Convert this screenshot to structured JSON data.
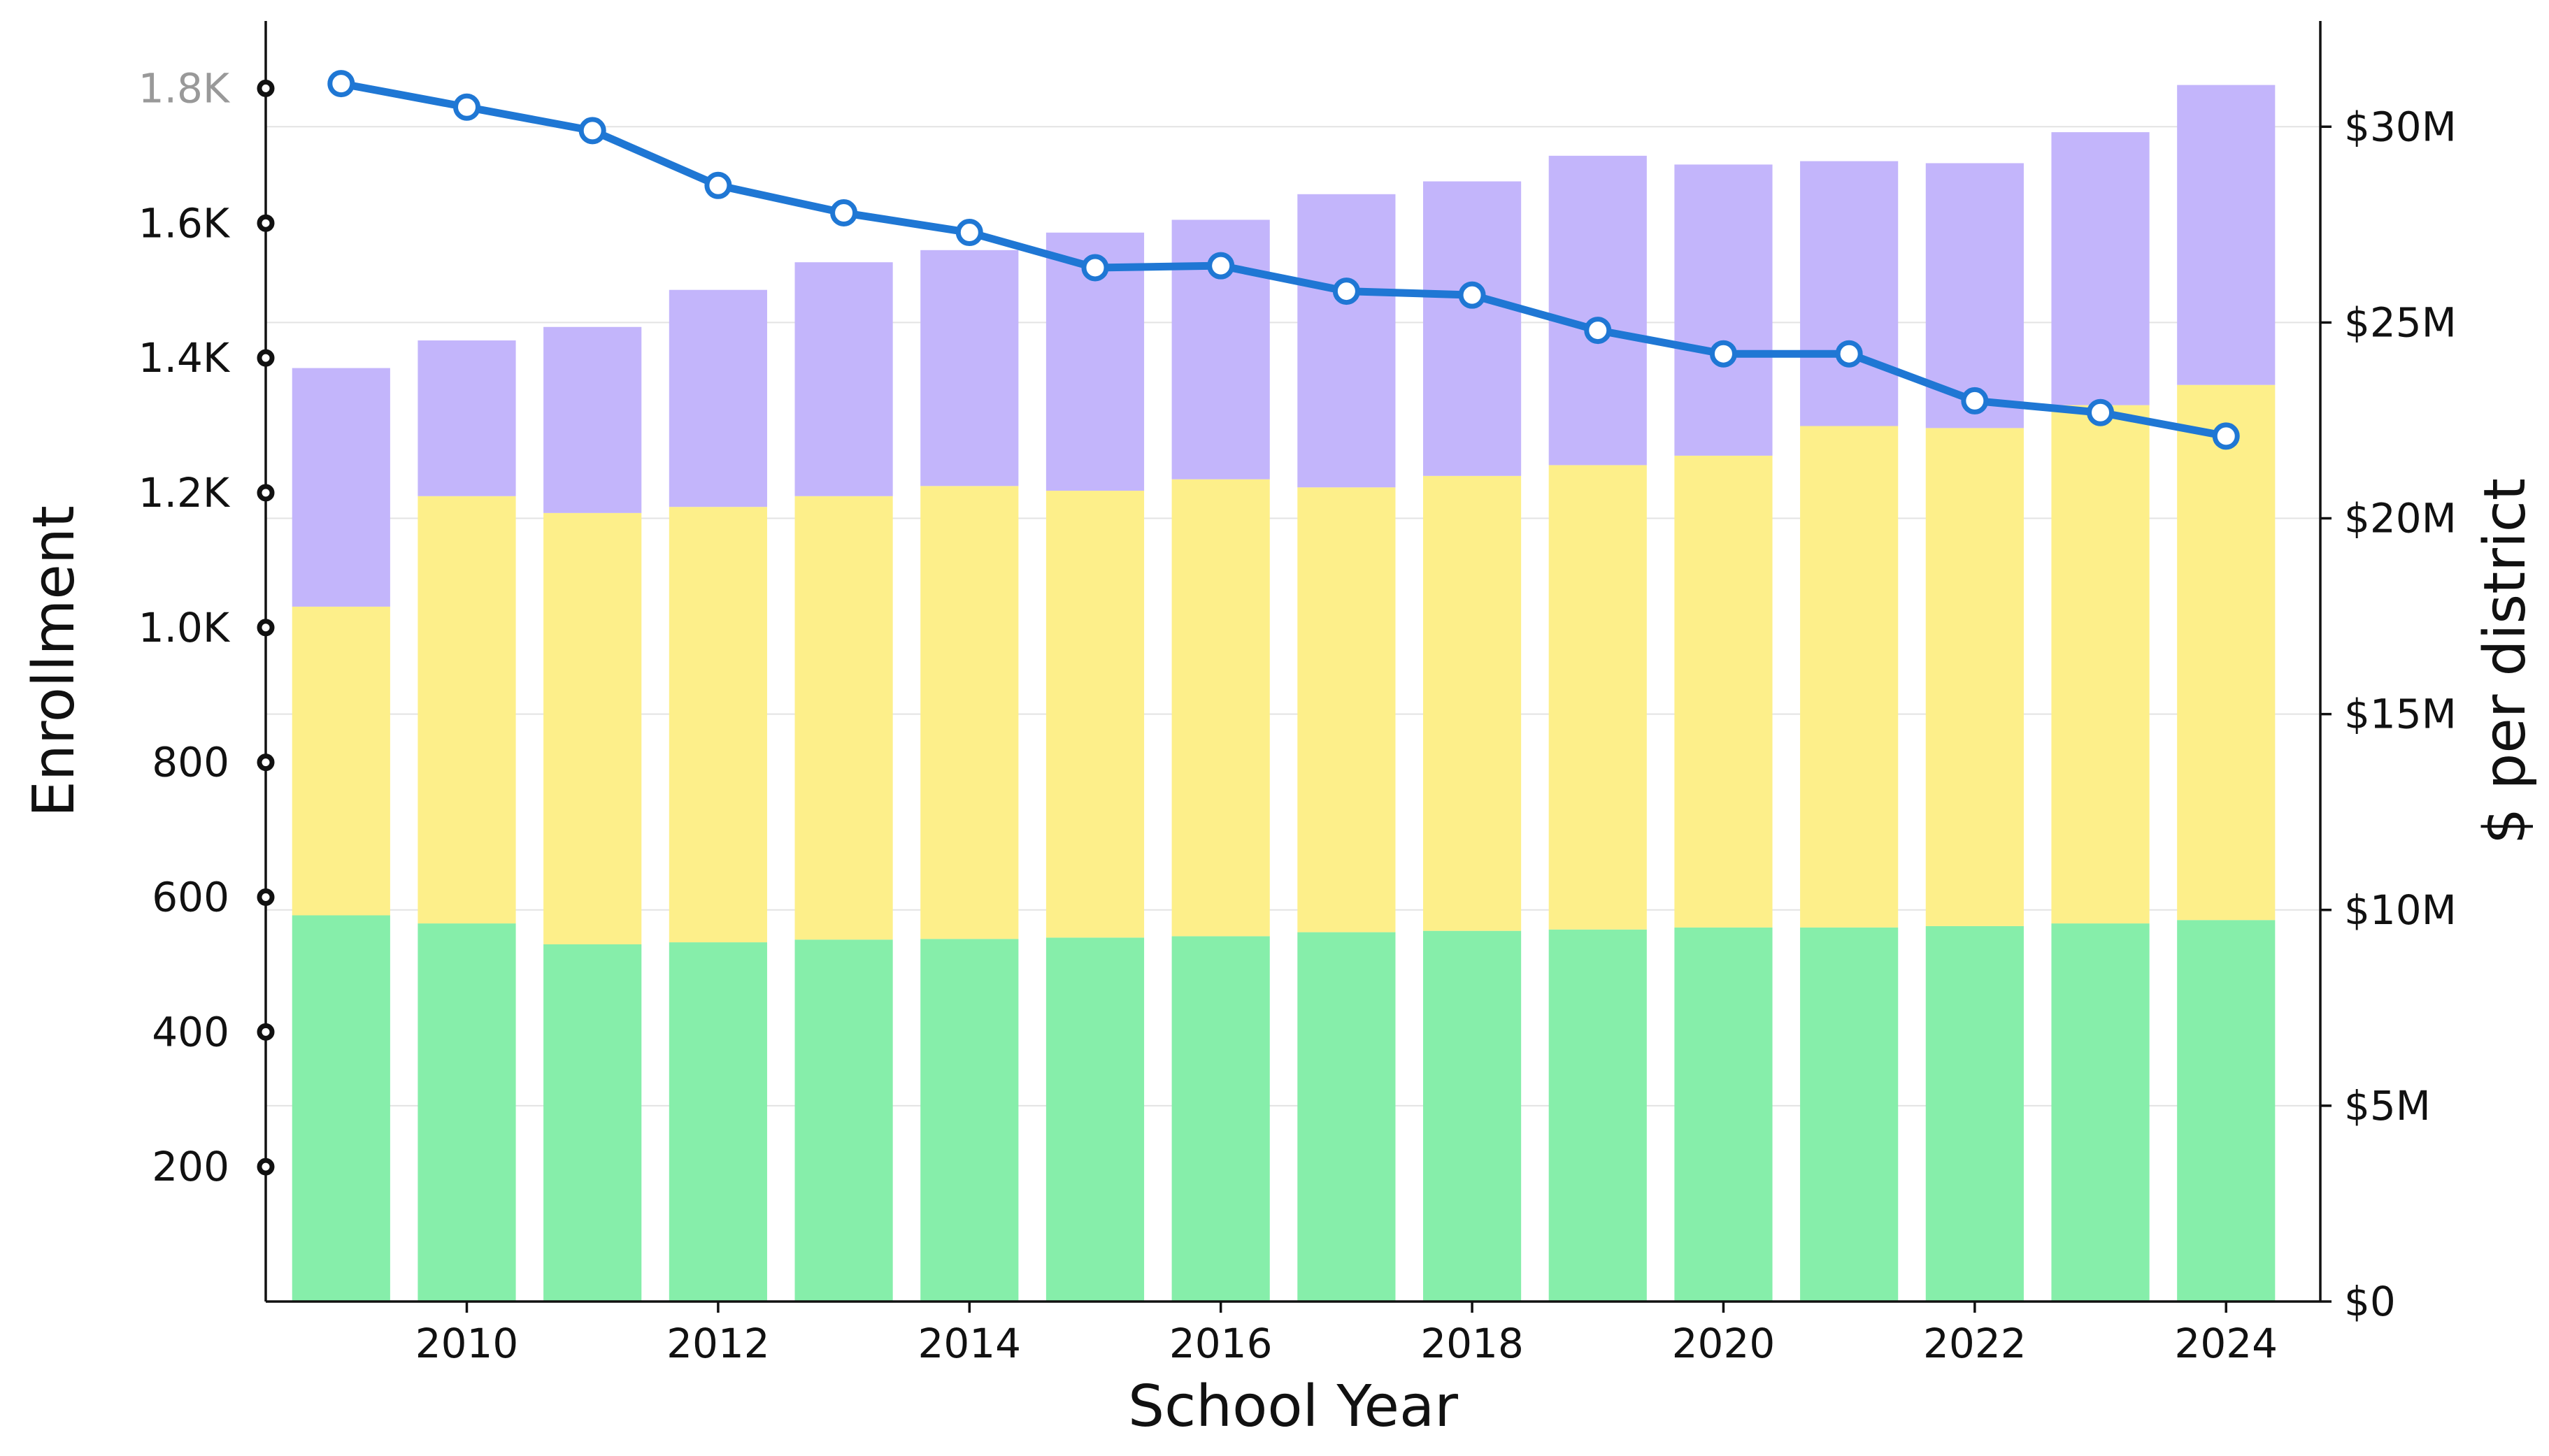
{
  "chart_data": {
    "type": "bar",
    "stacked": true,
    "xlabel": "School Year",
    "ylabel_left": "Enrollment",
    "ylabel_right": "$ per district",
    "x": [
      2009,
      2010,
      2011,
      2012,
      2013,
      2014,
      2015,
      2016,
      2017,
      2018,
      2019,
      2020,
      2021,
      2022,
      2023,
      2024
    ],
    "x_ticks": [
      "2010",
      "2012",
      "2014",
      "2016",
      "2018",
      "2020",
      "2022",
      "2024"
    ],
    "left_axis": {
      "ylim": [
        0,
        1900
      ],
      "ticks": [
        200,
        400,
        600,
        800,
        1000,
        1200,
        1400,
        1600,
        1800
      ],
      "tick_labels": [
        "200",
        "400",
        "600",
        "800",
        "1.0K",
        "1.2K",
        "1.4K",
        "1.6K",
        "1.8K"
      ],
      "tick_colors": [
        "#111111",
        "#111111",
        "#111111",
        "#111111",
        "#111111",
        "#111111",
        "#111111",
        "#111111",
        "#999999"
      ]
    },
    "right_axis": {
      "ylim": [
        0,
        32700000
      ],
      "ticks": [
        0,
        5000000,
        10000000,
        15000000,
        20000000,
        25000000,
        30000000
      ],
      "tick_labels": [
        "$0",
        "$5M",
        "$10M",
        "$15M",
        "$20M",
        "$25M",
        "$30M"
      ]
    },
    "grid": "horizontal",
    "bar_series": [
      {
        "color": "#86eeaa",
        "values": [
          573,
          561,
          530,
          533,
          537,
          538,
          540,
          542,
          548,
          550,
          552,
          555,
          555,
          557,
          561,
          566
        ]
      },
      {
        "color": "#fdef8a",
        "values": [
          458,
          634,
          640,
          646,
          658,
          672,
          663,
          678,
          660,
          675,
          689,
          700,
          744,
          739,
          769,
          794
        ]
      },
      {
        "color": "#c3b5fb",
        "values": [
          354,
          231,
          276,
          322,
          347,
          350,
          383,
          385,
          435,
          437,
          459,
          432,
          393,
          393,
          405,
          445
        ]
      }
    ],
    "line_series": {
      "color": "#1f77d4",
      "axis": "right",
      "values": [
        31100000,
        30500000,
        29900000,
        28500000,
        27800000,
        27300000,
        26400000,
        26450000,
        25800000,
        25700000,
        24800000,
        24200000,
        24200000,
        23000000,
        22700000,
        22100000
      ]
    }
  }
}
